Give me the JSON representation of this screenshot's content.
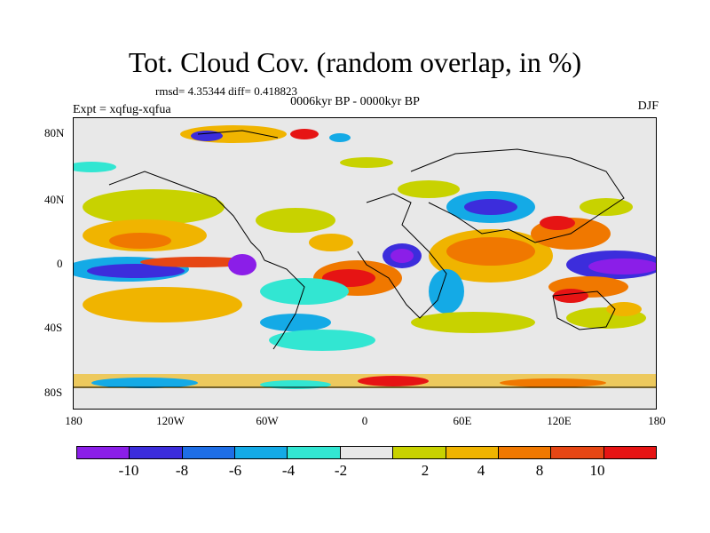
{
  "title": "Tot. Cloud Cov. (random overlap, in %)",
  "stats": "rmsd= 4.35344 diff= 0.418823",
  "subtitle": "0006kyr BP - 0000kyr BP",
  "experiment": "Expt = xqfug-xqfua",
  "season": "DJF",
  "lat_ticks": [
    "80N",
    "40N",
    "0",
    "40S",
    "80S"
  ],
  "lon_ticks": [
    "180",
    "120W",
    "60W",
    "0",
    "60E",
    "120E",
    "180"
  ],
  "colorbar": {
    "colors": [
      "#8b1ee8",
      "#3c2ddc",
      "#1e6ee6",
      "#14aae6",
      "#32e6d2",
      "#e8e8e8",
      "#c8d200",
      "#f0b400",
      "#f07800",
      "#e64614",
      "#e61414"
    ],
    "labels": [
      "-10",
      "-8",
      "-6",
      "-4",
      "-2",
      "2",
      "4",
      "8",
      "10"
    ]
  }
}
